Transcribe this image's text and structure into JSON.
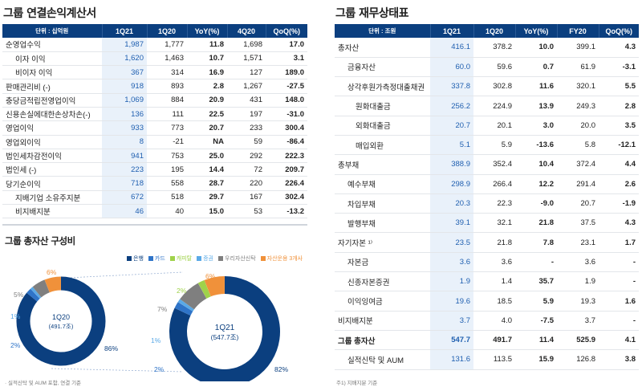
{
  "income": {
    "title": "그룹 연결손익계산서",
    "headers": [
      "단위 : 십억원",
      "1Q21",
      "1Q20",
      "YoY(%)",
      "4Q20",
      "QoQ(%)"
    ],
    "rows": [
      {
        "label": "순영업수익",
        "indent": 0,
        "bold": false,
        "values": [
          "1,987",
          "1,777",
          "11.8",
          "1,698",
          "17.0"
        ]
      },
      {
        "label": "이자 이익",
        "indent": 1,
        "bold": false,
        "values": [
          "1,620",
          "1,463",
          "10.7",
          "1,571",
          "3.1"
        ]
      },
      {
        "label": "비이자 이익",
        "indent": 1,
        "bold": false,
        "values": [
          "367",
          "314",
          "16.9",
          "127",
          "189.0"
        ]
      },
      {
        "label": "판매관리비 (-)",
        "indent": 0,
        "bold": false,
        "values": [
          "918",
          "893",
          "2.8",
          "1,267",
          "-27.5"
        ]
      },
      {
        "label": "충당금적립전영업이익",
        "indent": 0,
        "bold": false,
        "values": [
          "1,069",
          "884",
          "20.9",
          "431",
          "148.0"
        ]
      },
      {
        "label": "신용손실에대한손상차손(-)",
        "indent": 0,
        "bold": false,
        "values": [
          "136",
          "111",
          "22.5",
          "197",
          "-31.0"
        ]
      },
      {
        "label": "영업이익",
        "indent": 0,
        "bold": false,
        "values": [
          "933",
          "773",
          "20.7",
          "233",
          "300.4"
        ]
      },
      {
        "label": "영업외이익",
        "indent": 0,
        "bold": false,
        "values": [
          "8",
          "-21",
          "NA",
          "59",
          "-86.4"
        ]
      },
      {
        "label": "법인세차감전이익",
        "indent": 0,
        "bold": false,
        "values": [
          "941",
          "753",
          "25.0",
          "292",
          "222.3"
        ]
      },
      {
        "label": "법인세 (-)",
        "indent": 0,
        "bold": false,
        "values": [
          "223",
          "195",
          "14.4",
          "72",
          "209.7"
        ]
      },
      {
        "label": "당기순이익",
        "indent": 0,
        "bold": false,
        "values": [
          "718",
          "558",
          "28.7",
          "220",
          "226.4"
        ]
      },
      {
        "label": "지배기업 소유주지분",
        "indent": 1,
        "bold": false,
        "values": [
          "672",
          "518",
          "29.7",
          "167",
          "302.4"
        ]
      },
      {
        "label": "비지배지분",
        "indent": 1,
        "bold": false,
        "values": [
          "46",
          "40",
          "15.0",
          "53",
          "-13.2"
        ]
      }
    ]
  },
  "assets": {
    "title": "그룹 총자산 구성비",
    "legend": [
      {
        "label": "은행",
        "color": "#0b3f7f"
      },
      {
        "label": "카드",
        "color": "#2f74c8"
      },
      {
        "label": "캐피탈",
        "color": "#9fd24a"
      },
      {
        "label": "증권",
        "color": "#5aa9e6"
      },
      {
        "label": "우리자산신탁",
        "color": "#7f7f7f"
      },
      {
        "label": "자산운용 3개사",
        "color": "#f0913a"
      }
    ],
    "donut_1q20": {
      "label": "1Q20",
      "total": "(491.7조)",
      "slices": [
        {
          "name": "은행",
          "value": 86,
          "color": "#0b3f7f",
          "text": "86%"
        },
        {
          "name": "카드",
          "value": 2,
          "color": "#2f74c8",
          "text": "2%"
        },
        {
          "name": "증권",
          "value": 1,
          "color": "#5aa9e6",
          "text": "1%"
        },
        {
          "name": "우리자산신탁",
          "value": 5,
          "color": "#7f7f7f",
          "text": "5%"
        },
        {
          "name": "자산운용 3개사",
          "value": 6,
          "color": "#f0913a",
          "text": "6%"
        }
      ]
    },
    "donut_1q21": {
      "label": "1Q21",
      "total": "(547.7조)",
      "slices": [
        {
          "name": "은행",
          "value": 82,
          "color": "#0b3f7f",
          "text": "82%"
        },
        {
          "name": "카드",
          "value": 2,
          "color": "#2f74c8",
          "text": "2%"
        },
        {
          "name": "증권",
          "value": 1,
          "color": "#5aa9e6",
          "text": "1%"
        },
        {
          "name": "우리자산신탁",
          "value": 7,
          "color": "#7f7f7f",
          "text": "7%"
        },
        {
          "name": "캐피탈",
          "value": 2,
          "color": "#9fd24a",
          "text": "2%"
        },
        {
          "name": "자산운용 3개사",
          "value": 6,
          "color": "#f0913a",
          "text": "6%"
        }
      ]
    },
    "footnote": "· 실적신탁 및 AUM 포함, 연결 기준"
  },
  "balance": {
    "title": "그룹 재무상태표",
    "headers": [
      "단위 : 조원",
      "1Q21",
      "1Q20",
      "YoY(%)",
      "FY20",
      "QoQ(%)"
    ],
    "rows": [
      {
        "label": "총자산",
        "indent": 0,
        "bold": false,
        "values": [
          "416.1",
          "378.2",
          "10.0",
          "399.1",
          "4.3"
        ]
      },
      {
        "label": "금융자산",
        "indent": 1,
        "bold": false,
        "values": [
          "60.0",
          "59.6",
          "0.7",
          "61.9",
          "-3.1"
        ]
      },
      {
        "label": "상각후원가측정대출채권",
        "indent": 1,
        "bold": false,
        "values": [
          "337.8",
          "302.8",
          "11.6",
          "320.1",
          "5.5"
        ]
      },
      {
        "label": "원화대출금",
        "indent": 2,
        "bold": false,
        "values": [
          "256.2",
          "224.9",
          "13.9",
          "249.3",
          "2.8"
        ]
      },
      {
        "label": "외화대출금",
        "indent": 2,
        "bold": false,
        "values": [
          "20.7",
          "20.1",
          "3.0",
          "20.0",
          "3.5"
        ]
      },
      {
        "label": "매입외환",
        "indent": 2,
        "bold": false,
        "values": [
          "5.1",
          "5.9",
          "-13.6",
          "5.8",
          "-12.1"
        ]
      },
      {
        "label": "총부채",
        "indent": 0,
        "bold": false,
        "values": [
          "388.9",
          "352.4",
          "10.4",
          "372.4",
          "4.4"
        ]
      },
      {
        "label": "예수부채",
        "indent": 1,
        "bold": false,
        "values": [
          "298.9",
          "266.4",
          "12.2",
          "291.4",
          "2.6"
        ]
      },
      {
        "label": "차입부채",
        "indent": 1,
        "bold": false,
        "values": [
          "20.3",
          "22.3",
          "-9.0",
          "20.7",
          "-1.9"
        ]
      },
      {
        "label": "발행부채",
        "indent": 1,
        "bold": false,
        "values": [
          "39.1",
          "32.1",
          "21.8",
          "37.5",
          "4.3"
        ]
      },
      {
        "label": "자기자본 ¹⁾",
        "indent": 0,
        "bold": false,
        "values": [
          "23.5",
          "21.8",
          "7.8",
          "23.1",
          "1.7"
        ]
      },
      {
        "label": "자본금",
        "indent": 1,
        "bold": false,
        "values": [
          "3.6",
          "3.6",
          "-",
          "3.6",
          "-"
        ]
      },
      {
        "label": "신종자본증권",
        "indent": 1,
        "bold": false,
        "values": [
          "1.9",
          "1.4",
          "35.7",
          "1.9",
          "-"
        ]
      },
      {
        "label": "이익잉여금",
        "indent": 1,
        "bold": false,
        "values": [
          "19.6",
          "18.5",
          "5.9",
          "19.3",
          "1.6"
        ]
      },
      {
        "label": "비지배지분",
        "indent": 0,
        "bold": false,
        "values": [
          "3.7",
          "4.0",
          "-7.5",
          "3.7",
          "-"
        ]
      },
      {
        "label": "그룹 총자산",
        "indent": 0,
        "bold": true,
        "values": [
          "547.7",
          "491.7",
          "11.4",
          "525.9",
          "4.1"
        ]
      },
      {
        "label": "실적신탁 및 AUM",
        "indent": 1,
        "bold": false,
        "values": [
          "131.6",
          "113.5",
          "15.9",
          "126.8",
          "3.8"
        ]
      }
    ],
    "footnote": "주1) 지배지분 기준"
  }
}
